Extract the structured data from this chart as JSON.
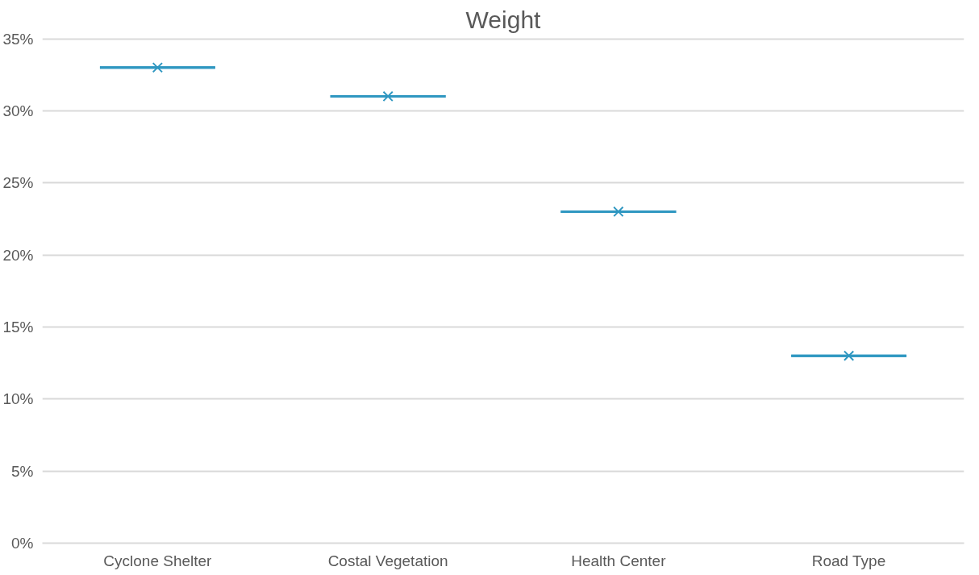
{
  "chart_data": {
    "type": "box",
    "title": "Weight",
    "categories": [
      "Cyclone Shelter",
      "Costal Vegetation",
      "Health Center",
      "Road Type"
    ],
    "color": "#2f97c1",
    "boxes": [
      {
        "low": 33,
        "q1": 33,
        "median": 33,
        "q3": 33,
        "high": 33,
        "mean": 33
      },
      {
        "low": 31,
        "q1": 31,
        "median": 31,
        "q3": 31,
        "high": 31,
        "mean": 31
      },
      {
        "low": 23,
        "q1": 23,
        "median": 23,
        "q3": 23,
        "high": 23,
        "mean": 23
      },
      {
        "low": 13,
        "q1": 13,
        "median": 13,
        "q3": 13,
        "high": 13,
        "mean": 13
      }
    ],
    "ylim": [
      0,
      35
    ],
    "yticks": [
      {
        "value": 0,
        "label": "0%"
      },
      {
        "value": 5,
        "label": "5%"
      },
      {
        "value": 10,
        "label": "10%"
      },
      {
        "value": 15,
        "label": "15%"
      },
      {
        "value": 20,
        "label": "20%"
      },
      {
        "value": 25,
        "label": "25%"
      },
      {
        "value": 30,
        "label": "30%"
      },
      {
        "value": 35,
        "label": "35%"
      }
    ],
    "grid": "y",
    "marker": "cross"
  }
}
